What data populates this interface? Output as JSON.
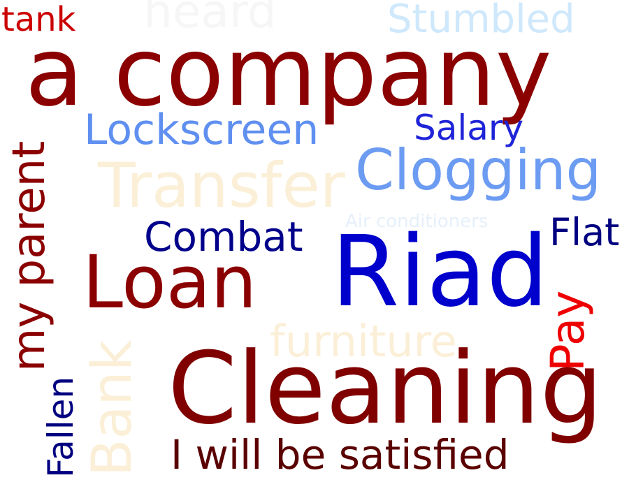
{
  "words": {
    "tank": {
      "text": "tank",
      "color": "#cc0000"
    },
    "heard": {
      "text": "heard",
      "color": "#f6f6f6"
    },
    "stumbled": {
      "text": "Stumbled",
      "color": "#cfe8fb"
    },
    "a_company": {
      "text": "a company",
      "color": "#8b0000"
    },
    "lockscreen": {
      "text": "Lockscreen",
      "color": "#5f8ff0"
    },
    "salary": {
      "text": "Salary",
      "color": "#1f24d8"
    },
    "clogging": {
      "text": "Clogging",
      "color": "#6c9bf2"
    },
    "my_parent": {
      "text": "my parent",
      "color": "#8b0000"
    },
    "transfer": {
      "text": "Transfer",
      "color": "#fbefd7"
    },
    "air_cond": {
      "text": "Air conditioners",
      "color": "#e6f0fb"
    },
    "combat": {
      "text": "Combat",
      "color": "#00008b"
    },
    "flat": {
      "text": "Flat",
      "color": "#000080"
    },
    "loan": {
      "text": "Loan",
      "color": "#8b0000"
    },
    "riad": {
      "text": "Riad",
      "color": "#0000cd"
    },
    "pay": {
      "text": "Pay",
      "color": "#ee0000"
    },
    "furniture": {
      "text": "furniture",
      "color": "#fbefd7"
    },
    "bank": {
      "text": "Bank",
      "color": "#fbefd7"
    },
    "fallen": {
      "text": "Fallen",
      "color": "#000080"
    },
    "cleaning": {
      "text": "Cleaning",
      "color": "#800000"
    },
    "satisfied": {
      "text": "I will be satisfied",
      "color": "#5a0000"
    }
  }
}
